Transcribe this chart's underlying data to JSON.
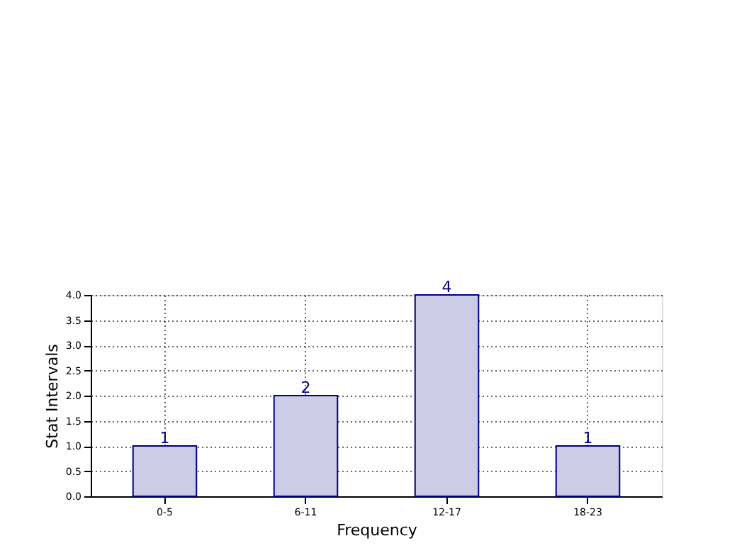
{
  "chart_data": {
    "type": "bar",
    "xlabel": "Frequency",
    "ylabel": "Stat Intervals",
    "categories": [
      "0-5",
      "6-11",
      "12-17",
      "18-23"
    ],
    "values": [
      1,
      2,
      4,
      1
    ],
    "color": "#cccce6",
    "ylim": [
      0,
      4
    ],
    "yticks": [
      {
        "value": 0,
        "label": "0.0"
      },
      {
        "value": 0.5,
        "label": "0.5"
      },
      {
        "value": 1,
        "label": "1.0"
      },
      {
        "value": 1.5,
        "label": "1.5"
      },
      {
        "value": 2,
        "label": "2.0"
      },
      {
        "value": 2.5,
        "label": "2.5"
      },
      {
        "value": 3,
        "label": "3.0"
      },
      {
        "value": 3.5,
        "label": "3.5"
      },
      {
        "value": 4,
        "label": "4.0"
      }
    ],
    "grid": true,
    "data_labels": true
  }
}
